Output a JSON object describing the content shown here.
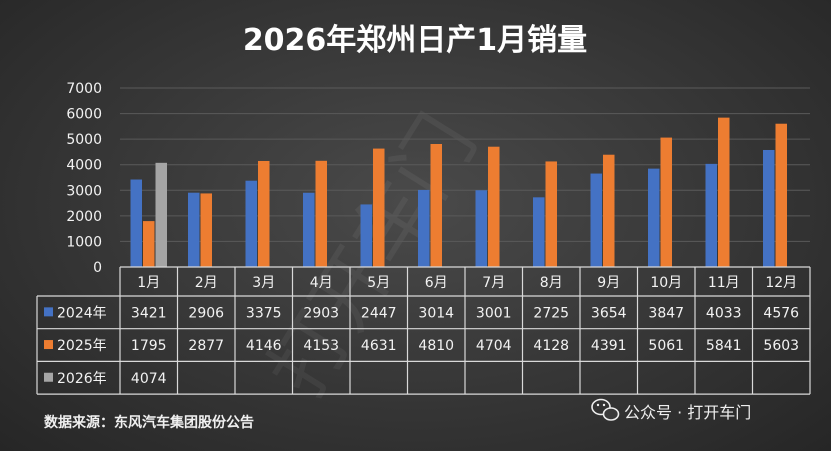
{
  "chart_data": {
    "type": "bar",
    "title": "2026年郑州日产1月销量",
    "categories": [
      "1月",
      "2月",
      "3月",
      "4月",
      "5月",
      "6月",
      "7月",
      "8月",
      "9月",
      "10月",
      "11月",
      "12月"
    ],
    "series": [
      {
        "name": "2024年",
        "values": [
          3421,
          2906,
          3375,
          2903,
          2447,
          3014,
          3001,
          2725,
          3654,
          3847,
          4033,
          4576
        ]
      },
      {
        "name": "2025年",
        "values": [
          1795,
          2877,
          4146,
          4153,
          4631,
          4810,
          4704,
          4128,
          4391,
          5061,
          5841,
          5603
        ]
      },
      {
        "name": "2026年",
        "values": [
          4074,
          null,
          null,
          null,
          null,
          null,
          null,
          null,
          null,
          null,
          null,
          null
        ]
      }
    ],
    "ylim": [
      0,
      7000
    ],
    "yticks": [
      0,
      1000,
      2000,
      3000,
      4000,
      5000,
      6000,
      7000
    ],
    "grid": true,
    "data_table": true
  },
  "colors": {
    "series": [
      "#4472c4",
      "#ed7d31",
      "#a5a5a5"
    ],
    "grid": "#5a5a5a",
    "table_border": "#d9d9d9"
  },
  "source_note": "数据来源：东风汽车集团股份公告",
  "watermark": {
    "icon": "wechat-icon",
    "text": "公众号 · 打开车门",
    "diagonal": "打开车门"
  }
}
